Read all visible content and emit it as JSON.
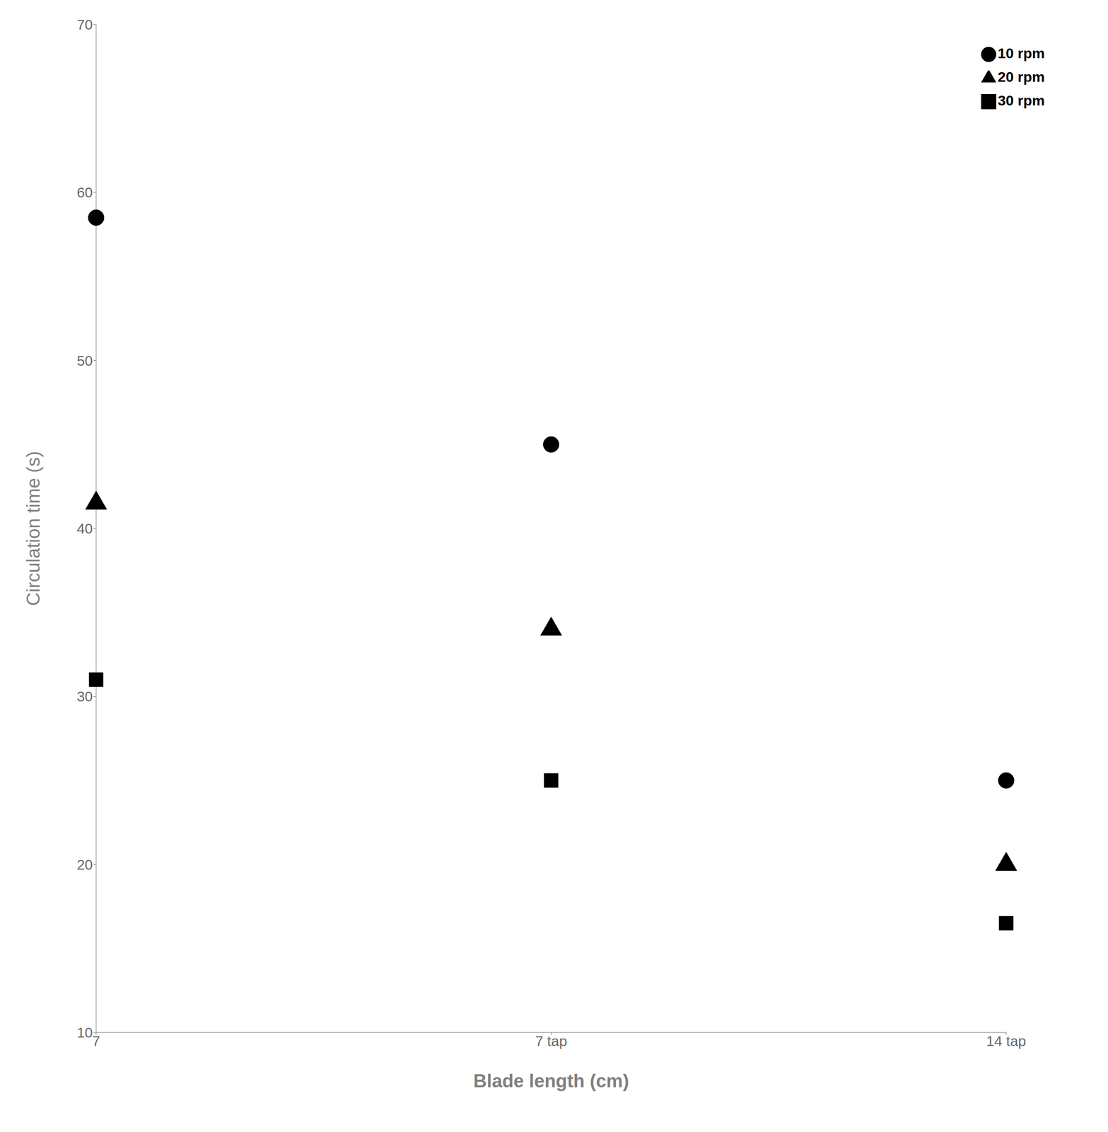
{
  "chart_data": {
    "type": "scatter",
    "xlabel": "Blade length (cm)",
    "ylabel": "Circulation time (s)",
    "categories": [
      "7",
      "7 tap",
      "14 tap"
    ],
    "ylim": [
      10,
      70
    ],
    "yticks": [
      10,
      20,
      30,
      40,
      50,
      60,
      70
    ],
    "grid": false,
    "legend": "upper right",
    "series": [
      {
        "name": "10 rpm",
        "color": "black",
        "marker": "circle",
        "values": [
          58.5,
          45,
          25
        ]
      },
      {
        "name": "20 rpm",
        "color": "black",
        "marker": "triangle",
        "values": [
          41.5,
          34,
          20
        ]
      },
      {
        "name": "30 rpm",
        "color": "black",
        "marker": "square",
        "values": [
          31,
          25,
          16.5
        ]
      }
    ]
  }
}
